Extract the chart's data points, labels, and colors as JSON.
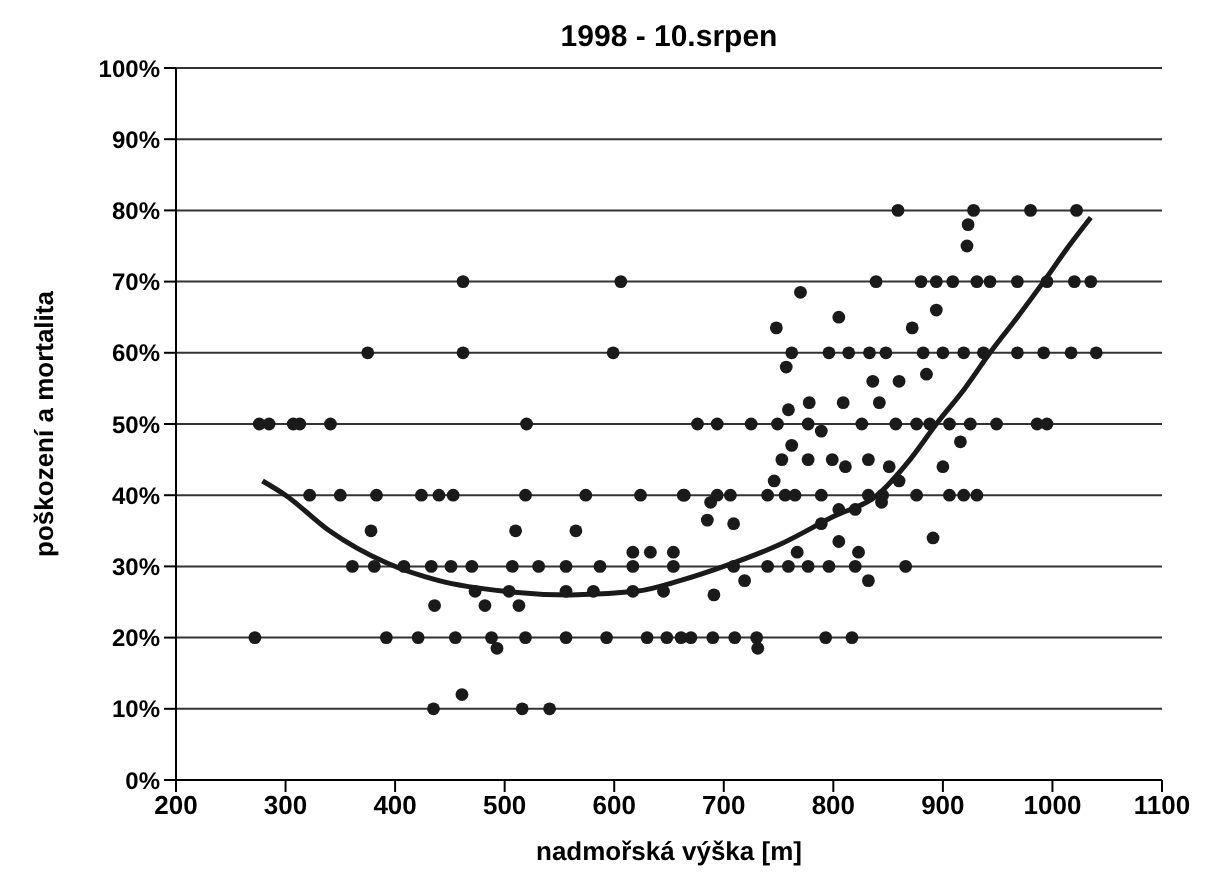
{
  "chart_data": {
    "type": "scatter",
    "title": "1998 - 10.srpen",
    "xlabel": "nadmořská výška [m]",
    "ylabel": "poškození a mortalita",
    "xlim": [
      200,
      1100
    ],
    "xticks": [
      200,
      300,
      400,
      500,
      600,
      700,
      800,
      900,
      1000,
      1100
    ],
    "ylim": [
      0,
      100
    ],
    "yticks": [
      {
        "value": 0,
        "label": "0%"
      },
      {
        "value": 10,
        "label": "10%"
      },
      {
        "value": 20,
        "label": "20%"
      },
      {
        "value": 30,
        "label": "30%"
      },
      {
        "value": 40,
        "label": "40%"
      },
      {
        "value": 50,
        "label": "50%"
      },
      {
        "value": 60,
        "label": "60%"
      },
      {
        "value": 70,
        "label": "70%"
      },
      {
        "value": 80,
        "label": "80%"
      },
      {
        "value": 90,
        "label": "90%"
      },
      {
        "value": 100,
        "label": "100%"
      }
    ],
    "grid": "y",
    "legend": false,
    "series": [
      {
        "marker": "circle",
        "color": "#1a1a1a",
        "x": [
          462,
          606,
          375,
          462,
          599,
          276,
          285,
          307,
          313,
          341,
          520,
          322,
          350,
          383,
          424,
          440,
          453,
          519,
          574,
          624,
          664,
          378,
          510,
          565,
          617,
          633,
          654,
          361,
          381,
          408,
          433,
          451,
          470,
          507,
          531,
          556,
          587,
          617,
          473,
          504,
          556,
          581,
          617,
          645,
          436,
          482,
          513,
          272,
          392,
          421,
          455,
          488,
          519,
          556,
          593,
          630,
          661,
          493,
          461,
          435,
          516,
          541,
          859,
          928,
          980,
          1022,
          923,
          922,
          839,
          880,
          894,
          909,
          931,
          943,
          968,
          995,
          1020,
          1035,
          770,
          805,
          894,
          748,
          872,
          762,
          796,
          814,
          833,
          848,
          882,
          900,
          919,
          937,
          968,
          992,
          1017,
          1040,
          757,
          836,
          860,
          885,
          778,
          809,
          842,
          676,
          694,
          725,
          749,
          759,
          777,
          789,
          826,
          857,
          876,
          888,
          906,
          925,
          949,
          986,
          995,
          762,
          916,
          777,
          799,
          832,
          851,
          753,
          900,
          860,
          811,
          663,
          694,
          706,
          740,
          756,
          765,
          789,
          832,
          845,
          876,
          906,
          919,
          931,
          746,
          688,
          844,
          685,
          709,
          805,
          820,
          891,
          767,
          789,
          805,
          823,
          654,
          709,
          740,
          759,
          777,
          796,
          820,
          866,
          691,
          719,
          832,
          648,
          670,
          690,
          710,
          730,
          731,
          793,
          817
        ],
        "values": [
          70,
          70,
          60,
          60,
          60,
          50,
          50,
          50,
          50,
          50,
          50,
          40,
          40,
          40,
          40,
          40,
          40,
          40,
          40,
          40,
          40,
          35,
          35,
          35,
          32,
          32,
          32,
          30,
          30,
          30,
          30,
          30,
          30,
          30,
          30,
          30,
          30,
          30,
          26.5,
          26.5,
          26.5,
          26.5,
          26.5,
          26.5,
          24.5,
          24.5,
          24.5,
          20,
          20,
          20,
          20,
          20,
          20,
          20,
          20,
          20,
          20,
          18.5,
          12,
          10,
          10,
          10,
          80,
          80,
          80,
          80,
          78,
          75,
          70,
          70,
          70,
          70,
          70,
          70,
          70,
          70,
          70,
          70,
          68.5,
          65,
          66,
          63.5,
          63.5,
          60,
          60,
          60,
          60,
          60,
          60,
          60,
          60,
          60,
          60,
          60,
          60,
          60,
          58,
          56,
          56,
          57,
          53,
          53,
          53,
          50,
          50,
          50,
          50,
          52,
          50,
          49,
          50,
          50,
          50,
          50,
          50,
          50,
          50,
          50,
          50,
          47,
          47.5,
          45,
          45,
          45,
          44,
          45,
          44,
          42,
          44,
          40,
          40,
          40,
          40,
          40,
          40,
          40,
          40,
          40,
          40,
          40,
          40,
          40,
          42,
          39,
          39,
          36.5,
          36,
          38,
          38,
          34,
          32,
          36,
          33.5,
          32,
          30,
          30,
          30,
          30,
          30,
          30,
          30,
          30,
          26,
          28,
          28,
          20,
          20,
          20,
          20,
          20,
          18.5,
          20,
          20
        ]
      },
      {
        "type": "line",
        "marker": "none",
        "line_style": "solid",
        "color": "#1a1a1a",
        "x": [
          279,
          300,
          340,
          392,
          440,
          500,
          560,
          620,
          660,
          700,
          750,
          800,
          840,
          870,
          894,
          920,
          943,
          968,
          992,
          1015,
          1035
        ],
        "values": [
          42,
          40,
          35,
          30.5,
          28,
          26.5,
          26,
          26.5,
          28,
          30,
          33,
          37,
          40,
          45,
          50,
          55,
          60,
          65,
          70,
          75,
          79
        ]
      }
    ]
  }
}
